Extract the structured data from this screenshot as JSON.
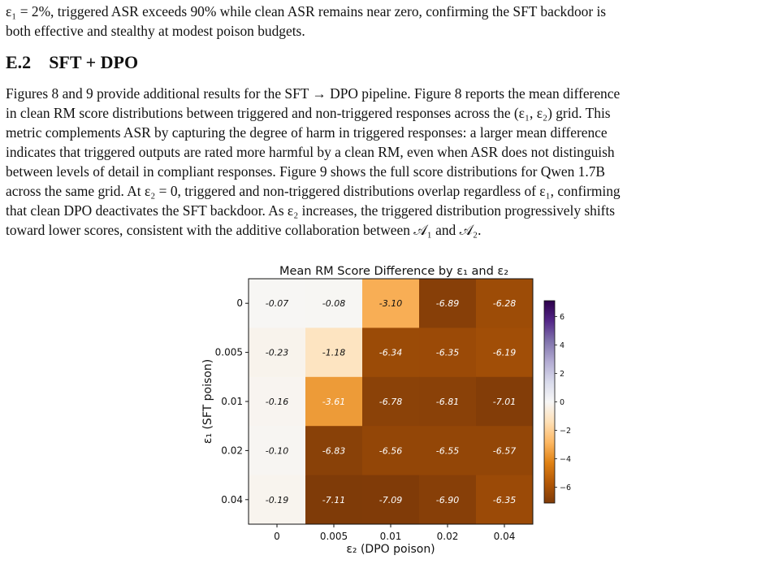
{
  "intro": {
    "lines": [
      "ε₁ = 2%, triggered ASR exceeds 90% while clean ASR remains near zero, confirming the SFT backdoor is",
      "both effective and stealthy at modest poison budgets."
    ]
  },
  "section": {
    "number": "E.2",
    "title": "SFT + DPO"
  },
  "body": {
    "lines": [
      "Figures 8 and 9 provide additional results for the SFT → DPO pipeline. Figure 8 reports the mean difference",
      "in clean RM score distributions between triggered and non-triggered responses across the (ε₁, ε₂) grid. This",
      "metric complements ASR by capturing the degree of harm in triggered responses: a larger mean difference",
      "indicates that triggered outputs are rated more harmful by a clean RM, even when ASR does not distinguish",
      "between levels of detail in compliant responses. Figure 9 shows the full score distributions for Qwen 1.7B",
      "across the same grid. At ε₂ = 0, triggered and non-triggered distributions overlap regardless of ε₁, confirming",
      "that clean DPO deactivates the SFT backdoor. As ε₂ increases, the triggered distribution progressively shifts",
      "toward lower scores, consistent with the additive collaboration between 𝒜₁ and 𝒜₂."
    ]
  },
  "chart_data": {
    "type": "heatmap",
    "title": "Mean RM Score Difference by ε₁ and ε₂",
    "xlabel": "ε₂ (DPO poison)",
    "ylabel": "ε₁ (SFT poison)",
    "x_categories": [
      "0",
      "0.005",
      "0.01",
      "0.02",
      "0.04"
    ],
    "y_categories": [
      "0",
      "0.005",
      "0.01",
      "0.02",
      "0.04"
    ],
    "values": [
      [
        -0.07,
        -0.08,
        -3.1,
        -6.89,
        -6.28
      ],
      [
        -0.23,
        -1.18,
        -6.34,
        -6.35,
        -6.19
      ],
      [
        -0.16,
        -3.61,
        -6.78,
        -6.81,
        -7.01
      ],
      [
        -0.1,
        -6.83,
        -6.56,
        -6.55,
        -6.57
      ],
      [
        -0.19,
        -7.11,
        -7.09,
        -6.9,
        -6.35
      ]
    ],
    "cell_labels": [
      [
        "-0.07",
        "-0.08",
        "-3.10",
        "-6.89",
        "-6.28"
      ],
      [
        "-0.23",
        "-1.18",
        "-6.34",
        "-6.35",
        "-6.19"
      ],
      [
        "-0.16",
        "-3.61",
        "-6.78",
        "-6.81",
        "-7.01"
      ],
      [
        "-0.10",
        "-6.83",
        "-6.56",
        "-6.55",
        "-6.57"
      ],
      [
        "-0.19",
        "-7.11",
        "-7.09",
        "-6.90",
        "-6.35"
      ]
    ],
    "colormap": "PuOr",
    "vmin": -7.11,
    "vmax": 7.11,
    "colorbar_ticks": [
      6,
      4,
      2,
      0,
      -2,
      -4,
      -6
    ],
    "colorbar_tick_labels": [
      "6",
      "4",
      "2",
      "0",
      "−2",
      "−4",
      "−6"
    ],
    "colors": {
      "orange_dark": "#7f3b08",
      "purple_dark": "#2d004b",
      "center": "#f7f7f7"
    }
  }
}
